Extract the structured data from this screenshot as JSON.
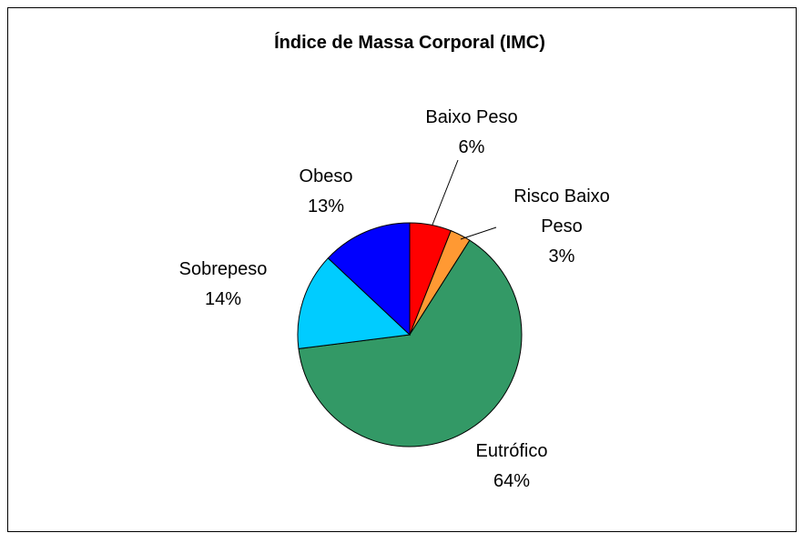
{
  "chart_data": {
    "type": "pie",
    "title": "Índice de Massa Corporal (IMC)",
    "categories": [
      "Baixo Peso",
      "Risco Baixo Peso",
      "Eutrófico",
      "Sobrepeso",
      "Obeso"
    ],
    "values": [
      6,
      3,
      64,
      14,
      13
    ],
    "value_labels": [
      "6%",
      "3%",
      "64%",
      "14%",
      "13%"
    ],
    "colors": [
      "#ff0000",
      "#ff9933",
      "#339966",
      "#00ccff",
      "#0000ff"
    ]
  }
}
